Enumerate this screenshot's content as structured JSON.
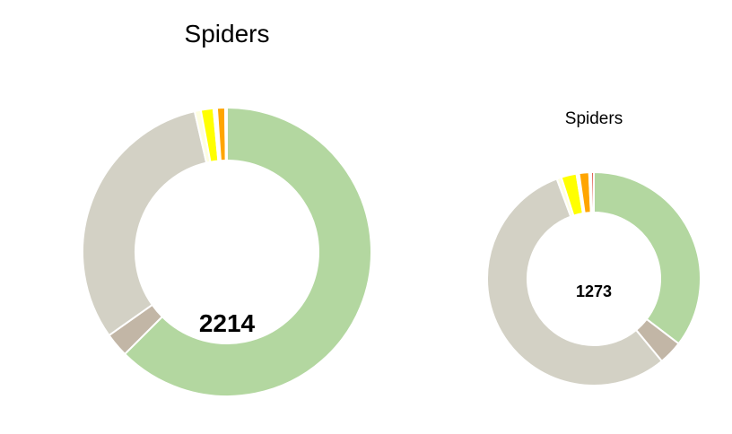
{
  "chart_data": [
    {
      "type": "pie",
      "style": "donut",
      "title": "Spiders",
      "total_label": "2214",
      "start": "top",
      "direction": "clockwise",
      "slices": [
        {
          "value": 0.625,
          "color": "#b3d7a0"
        },
        {
          "value": 0.027,
          "color": "#c2b6a6"
        },
        {
          "value": 0.312,
          "color": "#d3d1c5"
        },
        {
          "value": 0.007,
          "color": "#fefee0"
        },
        {
          "value": 0.014,
          "color": "#ffff00"
        },
        {
          "value": 0.004,
          "color": "#ffffff"
        },
        {
          "value": 0.009,
          "color": "#ffa500"
        },
        {
          "value": 0.002,
          "color": "#ffffff"
        }
      ]
    },
    {
      "type": "pie",
      "style": "donut",
      "title": "Spiders",
      "total_label": "1273",
      "start": "top",
      "direction": "clockwise",
      "slices": [
        {
          "value": 0.351,
          "color": "#b3d7a0"
        },
        {
          "value": 0.036,
          "color": "#c2b6a6"
        },
        {
          "value": 0.549,
          "color": "#d3d1c5"
        },
        {
          "value": 0.007,
          "color": "#fefee0"
        },
        {
          "value": 0.023,
          "color": "#ffff00"
        },
        {
          "value": 0.004,
          "color": "#ffffff"
        },
        {
          "value": 0.015,
          "color": "#ffa500"
        },
        {
          "value": 0.003,
          "color": "#ffffff"
        },
        {
          "value": 0.004,
          "color": "#e05a4b"
        }
      ]
    }
  ]
}
